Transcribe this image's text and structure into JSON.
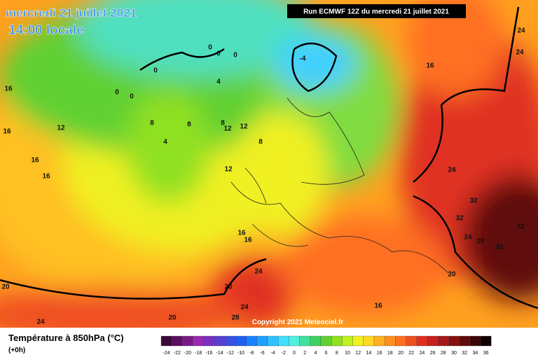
{
  "header": {
    "title": "mercredi 21 juillet 2021",
    "time": "14:00 locale",
    "run": "Run ECMWF 12Z du mercredi 21 juillet 2021"
  },
  "copyright": "Copyright 2021 Meteociel.fr",
  "legend": {
    "title": "Température à 850hPa (°C)",
    "subtitle": "(+0h)",
    "ticks": [
      "-24",
      "-22",
      "-20",
      "-18",
      "-16",
      "-14",
      "-12",
      "-10",
      "-8",
      "-6",
      "-4",
      "-2",
      "0",
      "2",
      "4",
      "6",
      "8",
      "10",
      "12",
      "14",
      "16",
      "18",
      "20",
      "22",
      "24",
      "26",
      "28",
      "30",
      "32",
      "34",
      "36"
    ],
    "colors": [
      "#3a0a3a",
      "#5a1060",
      "#7a1a88",
      "#9a28b0",
      "#7a30c0",
      "#5a40d0",
      "#3a50e0",
      "#2060f0",
      "#1a80ff",
      "#20a0ff",
      "#30c0ff",
      "#40e0ff",
      "#50f0e0",
      "#40e0a0",
      "#40d060",
      "#60d030",
      "#90e020",
      "#c0f020",
      "#f0f020",
      "#ffd820",
      "#ffb020",
      "#ff9020",
      "#ff7020",
      "#f05020",
      "#e03020",
      "#c82020",
      "#a81818",
      "#881010",
      "#600a0a",
      "#3a0505",
      "#100000"
    ]
  },
  "contour_labels": [
    "0",
    "0",
    "0",
    "0",
    "0",
    "0",
    "-4",
    "4",
    "4",
    "8",
    "8",
    "8",
    "8",
    "12",
    "12",
    "12",
    "12",
    "16",
    "16",
    "16",
    "16",
    "16",
    "16",
    "16",
    "16",
    "20",
    "20",
    "20",
    "20",
    "24",
    "24",
    "24",
    "24",
    "24",
    "24",
    "24",
    "28",
    "28",
    "32",
    "32",
    "32",
    "32"
  ]
}
